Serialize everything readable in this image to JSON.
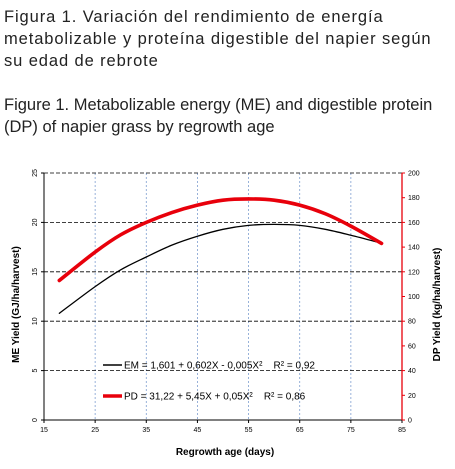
{
  "captions": {
    "spanish": "Figura 1. Variación del rendimiento de energía metabolizable y proteína digestible del napier según su edad de rebrote",
    "english": "Figure 1. Metabolizable energy (ME) and digestible protein (DP) of napier grass by regrowth age"
  },
  "chart_data": {
    "type": "line",
    "xlabel": "Regrowth age (days)",
    "ylabel_left": "ME Yield (GJ/ha/harvest)",
    "ylabel_right": "DP Yield (kg/ha/harvest)",
    "xlim": [
      15,
      85
    ],
    "ylim_left": [
      0,
      25
    ],
    "ylim_right": [
      0,
      200
    ],
    "x_ticks": [
      "15",
      "25",
      "35",
      "45",
      "55",
      "65",
      "75",
      "85"
    ],
    "y_left_ticks": [
      "0",
      "5",
      "10",
      "15",
      "20",
      "25"
    ],
    "y_right_ticks": [
      "0",
      "20",
      "40",
      "60",
      "80",
      "100",
      "120",
      "140",
      "160",
      "180",
      "200"
    ],
    "grid": {
      "horizontal": "dashed black at left-axis ticks",
      "vertical": "dotted blue at x ticks"
    },
    "legend_position": "bottom-center inside plot",
    "series": [
      {
        "label": "EM = 1,601 + 0,602X - 0,005X²    R² = 0,92",
        "axis": "left",
        "color": "#000000",
        "x": [
          18,
          25,
          30,
          35,
          40,
          45,
          50,
          55,
          60,
          65,
          70,
          75,
          81
        ],
        "y": [
          10.8,
          13.5,
          15.2,
          16.5,
          17.7,
          18.6,
          19.3,
          19.7,
          19.8,
          19.7,
          19.3,
          18.7,
          17.9
        ]
      },
      {
        "label": "PD = 31,22 + 5,45X + 0,05X²    R² = 0,86",
        "axis": "right",
        "color": "#e8000b",
        "x": [
          18,
          25,
          30,
          35,
          40,
          45,
          50,
          55,
          60,
          65,
          70,
          75,
          81
        ],
        "y": [
          113,
          136,
          150,
          160,
          168,
          174,
          178,
          179,
          178,
          174,
          167,
          157,
          143
        ]
      }
    ]
  }
}
